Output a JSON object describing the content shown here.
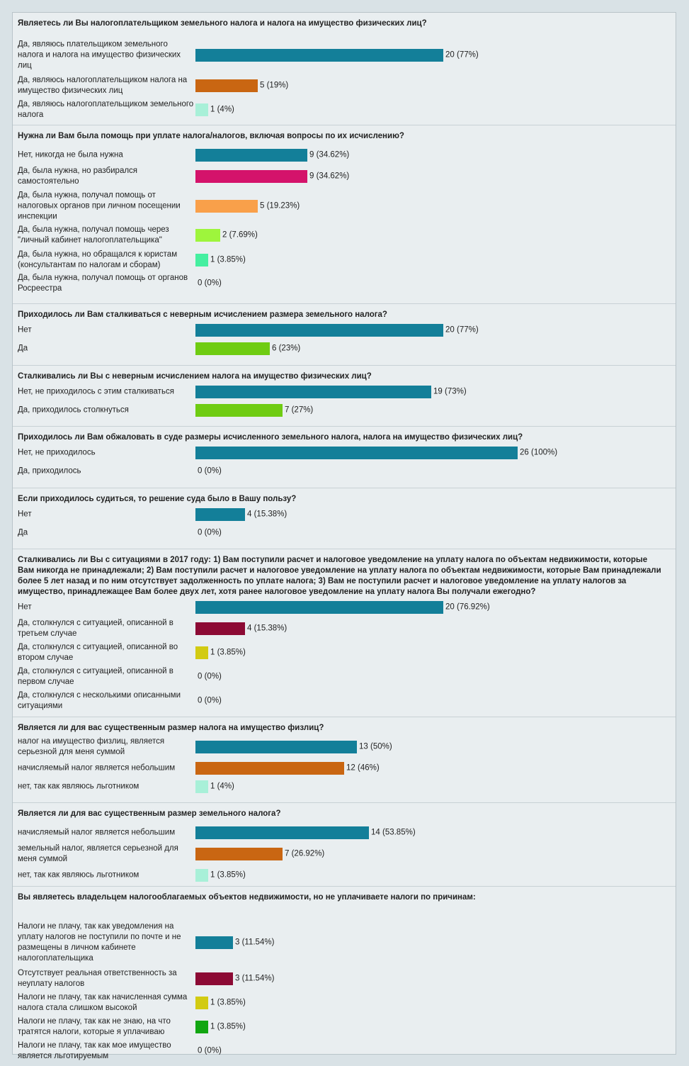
{
  "chart_data": [
    {
      "type": "bar",
      "title": "Являетесь ли Вы налогоплательщиком земельного налога и налога на имущество физических лиц?",
      "categories": [
        "Да, являюсь плательщиком земельного налога и налога на имущество физических лиц",
        "Да, являюсь налогоплательщиком налога на имущество физических лиц",
        "Да, являюсь налогоплательщиком земельного налога"
      ],
      "values": [
        20,
        5,
        1
      ],
      "labels": [
        "20 (77%)",
        "5 (19%)",
        "1 (4%)"
      ],
      "colors": [
        "#137f99",
        "#c96612",
        "#a8f0d8"
      ],
      "xlim": [
        0,
        26
      ]
    },
    {
      "type": "bar",
      "title": "Нужна ли Вам была помощь при уплате налога/налогов, включая вопросы по их исчислению?",
      "categories": [
        "Нет, никогда не была нужна",
        "Да, была нужна, но разбирался самостоятельно",
        "Да, была нужна, получал помощь от налоговых органов при личном посещении инспекции",
        "Да, была нужна, получал помощь через \"личный кабинет налогоплательщика\"",
        "Да, была нужна, но обращался к юристам (консультантам по налогам и сборам)",
        "Да, была нужна, получал помощь от органов Росреестра"
      ],
      "values": [
        9,
        9,
        5,
        2,
        1,
        0
      ],
      "labels": [
        "9 (34.62%)",
        "9 (34.62%)",
        "5 (19.23%)",
        "2 (7.69%)",
        "1 (3.85%)",
        "0 (0%)"
      ],
      "colors": [
        "#137f99",
        "#d4136b",
        "#f9a04a",
        "#9ef53c",
        "#45efa0",
        "#cccccc"
      ],
      "xlim": [
        0,
        26
      ]
    },
    {
      "type": "bar",
      "title": "Приходилось ли Вам сталкиваться с неверным исчислением размера земельного налога?",
      "categories": [
        "Нет",
        "Да"
      ],
      "values": [
        20,
        6
      ],
      "labels": [
        "20 (77%)",
        "6 (23%)"
      ],
      "colors": [
        "#137f99",
        "#6fcc12"
      ],
      "xlim": [
        0,
        26
      ]
    },
    {
      "type": "bar",
      "title": "Сталкивались ли Вы с неверным исчислением налога на имущество физических лиц?",
      "categories": [
        "Нет, не приходилось с этим сталкиваться",
        "Да, приходилось столкнуться"
      ],
      "values": [
        19,
        7
      ],
      "labels": [
        "19 (73%)",
        "7 (27%)"
      ],
      "colors": [
        "#137f99",
        "#6fcc12"
      ],
      "xlim": [
        0,
        26
      ]
    },
    {
      "type": "bar",
      "title": "Приходилось ли Вам обжаловать в суде размеры исчисленного земельного налога, налога на имущество физических лиц?",
      "categories": [
        "Нет, не приходилось",
        "Да, приходилось"
      ],
      "values": [
        26,
        0
      ],
      "labels": [
        "26 (100%)",
        "0 (0%)"
      ],
      "colors": [
        "#137f99",
        "#cccccc"
      ],
      "xlim": [
        0,
        26
      ]
    },
    {
      "type": "bar",
      "title": "Если приходилось судиться, то решение суда было в Вашу пользу?",
      "categories": [
        "Нет",
        "Да"
      ],
      "values": [
        4,
        0
      ],
      "labels": [
        "4 (15.38%)",
        "0 (0%)"
      ],
      "colors": [
        "#137f99",
        "#cccccc"
      ],
      "xlim": [
        0,
        26
      ]
    },
    {
      "type": "bar",
      "title": "Сталкивались ли Вы с ситуациями в 2017 году: 1) Вам поступили расчет и налоговое уведомление на уплату налога по объектам недвижимости, которые Вам никогда не принадлежали; 2) Вам поступили расчет и налоговое уведомление на уплату налога по объектам недвижимости, которые Вам принадлежали более 5 лет назад и по ним отсутствует задолженность по уплате налога; 3) Вам не поступили расчет и налоговое уведомление на уплату налогов за имущество, принадлежащее Вам более двух лет, хотя ранее налоговое уведомление на уплату налога Вы получали ежегодно?",
      "categories": [
        "Нет",
        "Да, столкнулся с ситуацией, описанной в третьем случае",
        "Да, столкнулся с ситуацией, описанной во втором случае",
        "Да, столкнулся с ситуацией, описанной в первом случае",
        "Да, столкнулся с несколькими описанными ситуациями"
      ],
      "values": [
        20,
        4,
        1,
        0,
        0
      ],
      "labels": [
        "20 (76.92%)",
        "4 (15.38%)",
        "1 (3.85%)",
        "0 (0%)",
        "0 (0%)"
      ],
      "colors": [
        "#137f99",
        "#8c0a34",
        "#d2cb12",
        "#cccccc",
        "#cccccc"
      ],
      "xlim": [
        0,
        26
      ]
    },
    {
      "type": "bar",
      "title": "Является ли для вас существенным размер налога на имущество физлиц?",
      "categories": [
        "налог на имущество физлиц, является серьезной для меня суммой",
        "начисляемый налог является небольшим",
        "нет, так как являюсь льготником"
      ],
      "values": [
        13,
        12,
        1
      ],
      "labels": [
        "13 (50%)",
        "12 (46%)",
        "1 (4%)"
      ],
      "colors": [
        "#137f99",
        "#c96612",
        "#a8f0d8"
      ],
      "xlim": [
        0,
        26
      ]
    },
    {
      "type": "bar",
      "title": "Является ли для вас существенным размер земельного налога?",
      "categories": [
        "начисляемый налог является небольшим",
        "земельный налог, является серьезной для меня суммой",
        "нет, так как являюсь льготником"
      ],
      "values": [
        14,
        7,
        1
      ],
      "labels": [
        "14 (53.85%)",
        "7 (26.92%)",
        "1 (3.85%)"
      ],
      "colors": [
        "#137f99",
        "#c96612",
        "#a8f0d8"
      ],
      "xlim": [
        0,
        26
      ]
    },
    {
      "type": "bar",
      "title": "Вы являетесь владельцем налогооблагаемых объектов недвижимости, но не уплачиваете налоги по причинам:",
      "categories": [
        "Налоги не плачу, так как уведомления на уплату налогов не поступили по почте и не размещены в личном кабинете налогоплательщика",
        "Отсутствует реальная ответственность за неуплату налогов",
        "Налоги не плачу, так как начисленная сумма налога стала слишком высокой",
        "Налоги не плачу, так как не знаю, на что тратятся налоги, которые я уплачиваю",
        "Налоги не плачу, так как мое имущество является льготируемым"
      ],
      "values": [
        3,
        3,
        1,
        1,
        0
      ],
      "labels": [
        "3 (11.54%)",
        "3 (11.54%)",
        "1 (3.85%)",
        "1 (3.85%)",
        "0 (0%)"
      ],
      "colors": [
        "#137f99",
        "#8c0a34",
        "#d2cb12",
        "#11a611",
        "#cccccc"
      ],
      "xlim": [
        0,
        26
      ]
    }
  ]
}
